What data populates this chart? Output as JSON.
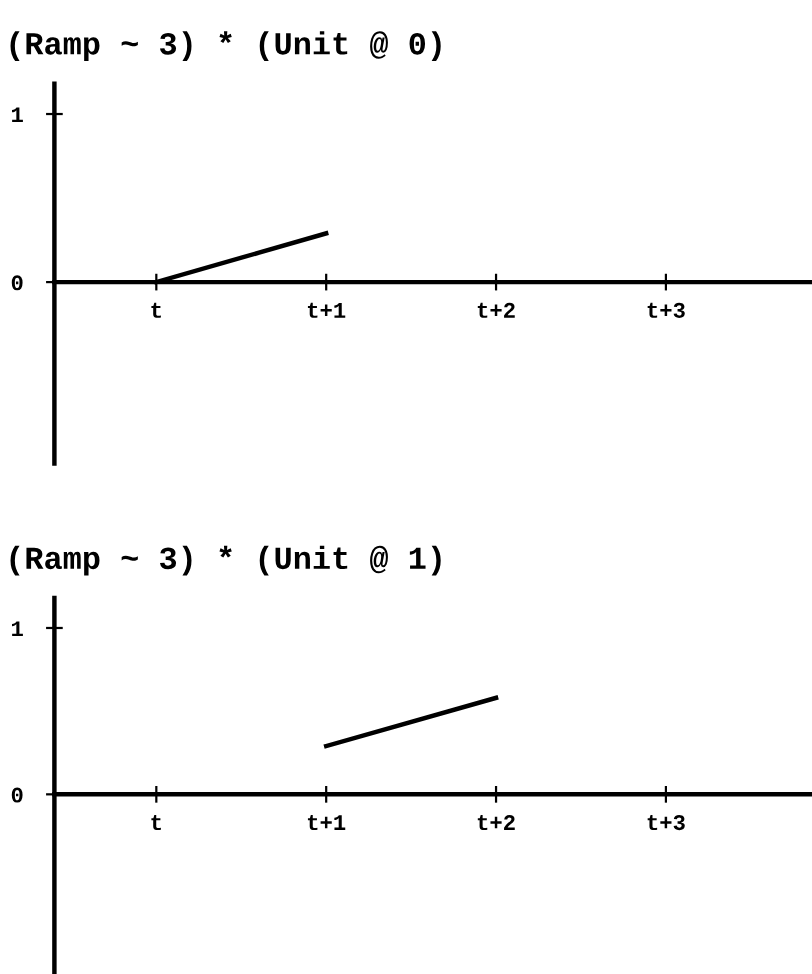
{
  "chart_data": [
    {
      "type": "line",
      "title": "(Ramp ~ 3) * (Unit @ 0)",
      "categories": [
        "t",
        "t+1",
        "t+2",
        "t+3"
      ],
      "ylim": [
        -1.08,
        1.18
      ],
      "yticks": [
        0,
        1
      ],
      "grid": false,
      "legend": false,
      "series": [
        {
          "color": "#000000",
          "values": [
            0,
            0.29,
            null,
            null
          ]
        }
      ]
    },
    {
      "type": "line",
      "title": "(Ramp ~ 3) * (Unit @ 1)",
      "categories": [
        "t",
        "t+1",
        "t+2",
        "t+3"
      ],
      "ylim": [
        -1.08,
        1.18
      ],
      "yticks": [
        0,
        1
      ],
      "grid": false,
      "legend": false,
      "series": [
        {
          "color": "#000000",
          "values": [
            null,
            0.29,
            0.58,
            null
          ]
        }
      ]
    }
  ]
}
